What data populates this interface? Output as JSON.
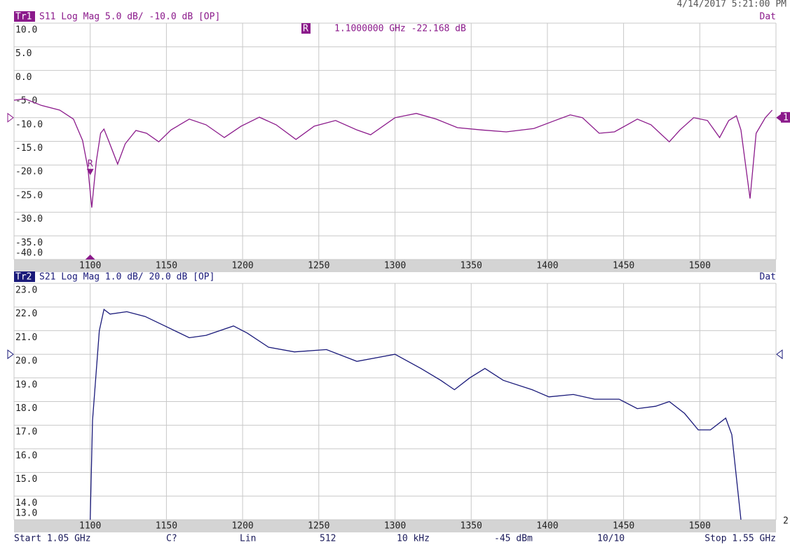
{
  "header": {
    "date": "4/14/2017 5:21:00 PM"
  },
  "chart_data": [
    {
      "type": "line",
      "trace": "Tr1",
      "title": "S11 Log Mag 5.0 dB/ -10.0 dB [OP]",
      "status": "Dat",
      "trace_number": "1",
      "color": "#8b1a8b",
      "reference": -10,
      "grid": true,
      "xlim": [
        1050,
        1550
      ],
      "xticks": [
        1100,
        1150,
        1200,
        1250,
        1300,
        1350,
        1400,
        1450,
        1500
      ],
      "ylim": [
        -40,
        10
      ],
      "yticks": [
        {
          "value": 10,
          "label": "10.0"
        },
        {
          "value": 5,
          "label": "5.0"
        },
        {
          "value": 0,
          "label": "0.0"
        },
        {
          "value": -5,
          "label": "-5.0"
        },
        {
          "value": -10,
          "label": "-10.0"
        },
        {
          "value": -15,
          "label": "-15.0"
        },
        {
          "value": -20,
          "label": "-20.0"
        },
        {
          "value": -25,
          "label": "-25.0"
        },
        {
          "value": -30,
          "label": "-30.0"
        },
        {
          "value": -35,
          "label": "-35.0"
        },
        {
          "value": -40,
          "label": "-40.0"
        }
      ],
      "x": [
        1050,
        1057,
        1068,
        1080,
        1089,
        1095,
        1098.5,
        1101,
        1104,
        1106.8,
        1109,
        1112,
        1118,
        1123,
        1130,
        1137,
        1145,
        1153,
        1165,
        1176,
        1188,
        1199,
        1211,
        1222,
        1235,
        1247,
        1261,
        1275,
        1284,
        1300,
        1314,
        1327,
        1341,
        1357,
        1373,
        1391,
        1405,
        1415,
        1423,
        1434,
        1444,
        1459,
        1468,
        1480,
        1487,
        1496,
        1505,
        1513,
        1519,
        1524,
        1527,
        1533,
        1537,
        1543,
        1547.5
      ],
      "values": [
        -6.3,
        -6.0,
        -7.4,
        -8.4,
        -10.3,
        -14.8,
        -20.7,
        -29.0,
        -19.2,
        -13.3,
        -12.4,
        -14.8,
        -19.8,
        -15.5,
        -12.7,
        -13.3,
        -15.1,
        -12.6,
        -10.3,
        -11.5,
        -14.2,
        -11.8,
        -9.9,
        -11.5,
        -14.6,
        -11.8,
        -10.6,
        -12.6,
        -13.6,
        -10.0,
        -9.1,
        -10.3,
        -12.1,
        -12.6,
        -13.0,
        -12.3,
        -10.6,
        -9.4,
        -10.0,
        -13.3,
        -13.0,
        -10.3,
        -11.5,
        -15.1,
        -12.6,
        -10.0,
        -10.6,
        -14.2,
        -10.6,
        -9.6,
        -12.6,
        -27.1,
        -13.3,
        -10.0,
        -8.4
      ],
      "marker": {
        "label": "R",
        "x": 1100,
        "y": -22.168,
        "readout": "1.1000000 GHz -22.168 dB"
      }
    },
    {
      "type": "line",
      "trace": "Tr2",
      "title": "S21 Log Mag 1.0 dB/ 20.0 dB [OP]",
      "status": "Dat",
      "trace_number": "2",
      "color": "#1a1a7a",
      "reference": 20,
      "grid": true,
      "xlim": [
        1050,
        1550
      ],
      "xticks": [
        1100,
        1150,
        1200,
        1250,
        1300,
        1350,
        1400,
        1450,
        1500
      ],
      "ylim": [
        13,
        23
      ],
      "yticks": [
        {
          "value": 23,
          "label": "23.0"
        },
        {
          "value": 22,
          "label": "22.0"
        },
        {
          "value": 21,
          "label": "21.0"
        },
        {
          "value": 20,
          "label": "20.0"
        },
        {
          "value": 19,
          "label": "19.0"
        },
        {
          "value": 18,
          "label": "18.0"
        },
        {
          "value": 17,
          "label": "17.0"
        },
        {
          "value": 16,
          "label": "16.0"
        },
        {
          "value": 15,
          "label": "15.0"
        },
        {
          "value": 14,
          "label": "14.0"
        },
        {
          "value": 13,
          "label": "13.0"
        }
      ],
      "x": [
        1100,
        1101.5,
        1106,
        1109,
        1113,
        1124,
        1136,
        1149,
        1165,
        1176,
        1194,
        1203,
        1217,
        1234,
        1255,
        1275,
        1300,
        1317,
        1330,
        1339,
        1349,
        1359,
        1371,
        1390,
        1401,
        1417,
        1431,
        1447,
        1459,
        1471,
        1480,
        1490,
        1499,
        1507,
        1517,
        1521,
        1527
      ],
      "values": [
        13.0,
        17.2,
        21.0,
        21.9,
        21.7,
        21.8,
        21.6,
        21.2,
        20.7,
        20.8,
        21.2,
        20.9,
        20.3,
        20.1,
        20.2,
        19.7,
        20.0,
        19.4,
        18.9,
        18.5,
        19.0,
        19.4,
        18.9,
        18.5,
        18.2,
        18.3,
        18.1,
        18.1,
        17.7,
        17.8,
        18.0,
        17.5,
        16.8,
        16.8,
        17.3,
        16.6,
        13.0
      ]
    }
  ],
  "footer": {
    "start": "Start 1.05 GHz",
    "channel": "C?",
    "sweep": "Lin",
    "points": "512",
    "ifbw": "10 kHz",
    "power": "-45 dBm",
    "avg": "10/10",
    "stop": "Stop 1.55 GHz"
  }
}
